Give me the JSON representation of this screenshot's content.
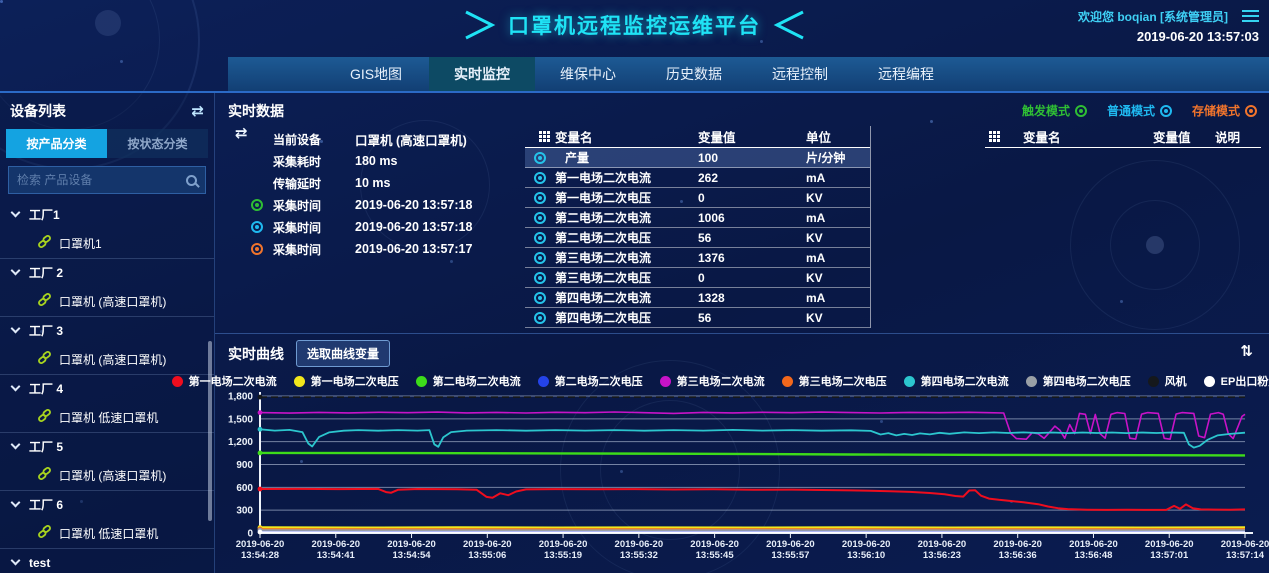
{
  "header": {
    "title": "口罩机远程监控运维平台",
    "welcome": "欢迎您  boqian [系统管理员]",
    "datetime": "2019-06-20 13:57:03"
  },
  "nav": {
    "tabs": [
      {
        "label": "GIS地图",
        "active": false
      },
      {
        "label": "实时监控",
        "active": true
      },
      {
        "label": "维保中心",
        "active": false
      },
      {
        "label": "历史数据",
        "active": false
      },
      {
        "label": "远程控制",
        "active": false
      },
      {
        "label": "远程编程",
        "active": false
      }
    ]
  },
  "sidebar": {
    "title": "设备列表",
    "tabs": [
      {
        "label": "按产品分类",
        "active": true
      },
      {
        "label": "按状态分类",
        "active": false
      }
    ],
    "search_placeholder": "检索 产品设备",
    "tree": [
      {
        "factory": "工厂1",
        "devices": [
          "口罩机1"
        ]
      },
      {
        "factory": "工厂 2",
        "devices": [
          "口罩机 (高速口罩机)"
        ]
      },
      {
        "factory": "工厂 3",
        "devices": [
          "口罩机 (高速口罩机)"
        ]
      },
      {
        "factory": "工厂 4",
        "devices": [
          "口罩机 低速口罩机"
        ]
      },
      {
        "factory": "工厂 5",
        "devices": [
          "口罩机 (高速口罩机)"
        ]
      },
      {
        "factory": "工厂 6",
        "devices": [
          "口罩机 低速口罩机"
        ]
      },
      {
        "factory": "test",
        "devices": []
      }
    ]
  },
  "realtime_data": {
    "title": "实时数据",
    "modes": [
      {
        "label": "触发模式",
        "color": "#2fbe34"
      },
      {
        "label": "普通模式",
        "color": "#1fb9f0"
      },
      {
        "label": "存储模式",
        "color": "#f1742c"
      }
    ],
    "info_rows": [
      {
        "label": "当前设备",
        "value": "口罩机 (高速口罩机)",
        "icon": ""
      },
      {
        "label": "采集耗时",
        "value": "180 ms",
        "icon": ""
      },
      {
        "label": "传输延时",
        "value": "10 ms",
        "icon": ""
      },
      {
        "label": "采集时间",
        "value": "2019-06-20 13:57:18",
        "icon": "#2fbe34"
      },
      {
        "label": "采集时间",
        "value": "2019-06-20 13:57:18",
        "icon": "#1fb9f0"
      },
      {
        "label": "采集时间",
        "value": "2019-06-20 13:57:17",
        "icon": "#f1742c"
      }
    ],
    "table": {
      "headers": [
        "变量名",
        "变量值",
        "单位"
      ],
      "row_icon_color": "#25c3ea",
      "rows": [
        {
          "name": "产量",
          "value": "100",
          "unit": "片/分钟",
          "highlight": true
        },
        {
          "name": "第一电场二次电流",
          "value": "262",
          "unit": "mA",
          "highlight": false
        },
        {
          "name": "第一电场二次电压",
          "value": "0",
          "unit": "KV",
          "highlight": false
        },
        {
          "name": "第二电场二次电流",
          "value": "1006",
          "unit": "mA",
          "highlight": false
        },
        {
          "name": "第二电场二次电压",
          "value": "56",
          "unit": "KV",
          "highlight": false
        },
        {
          "name": "第三电场二次电流",
          "value": "1376",
          "unit": "mA",
          "highlight": false
        },
        {
          "name": "第三电场二次电压",
          "value": "0",
          "unit": "KV",
          "highlight": false
        },
        {
          "name": "第四电场二次电流",
          "value": "1328",
          "unit": "mA",
          "highlight": false
        },
        {
          "name": "第四电场二次电压",
          "value": "56",
          "unit": "KV",
          "highlight": false
        }
      ]
    },
    "table2": {
      "headers": [
        "变量名",
        "变量值",
        "说明"
      ],
      "rows": []
    }
  },
  "realtime_curve": {
    "title": "实时曲线",
    "button": "选取曲线变量"
  },
  "chart_data": {
    "type": "line",
    "title": "实时曲线",
    "ylim": [
      0,
      1800
    ],
    "ytick_values": [
      0,
      300,
      600,
      900,
      1200,
      1500,
      1800
    ],
    "ytick_labels": [
      "0",
      "300",
      "600",
      "900",
      "1,200",
      "1,500",
      "1,800"
    ],
    "x_date": "2019-06-20",
    "x_times": [
      "13:54:28",
      "13:54:41",
      "13:54:54",
      "13:55:06",
      "13:55:19",
      "13:55:32",
      "13:55:45",
      "13:55:57",
      "13:56:10",
      "13:56:23",
      "13:56:36",
      "13:56:48",
      "13:57:01",
      "13:57:14"
    ],
    "grid": true,
    "legend_position": "top",
    "series": [
      {
        "name": "第一电场二次电流",
        "color": "#ef0d1e",
        "width": 2,
        "points": [
          [
            0,
            578
          ],
          [
            4,
            580
          ],
          [
            8,
            577
          ],
          [
            12,
            579
          ],
          [
            12.8,
            538
          ],
          [
            13.3,
            528
          ],
          [
            14,
            568
          ],
          [
            16,
            578
          ],
          [
            20,
            576
          ],
          [
            22,
            568
          ],
          [
            23,
            474
          ],
          [
            23.6,
            462
          ],
          [
            24.4,
            522
          ],
          [
            25.2,
            497
          ],
          [
            26,
            545
          ],
          [
            27,
            573
          ],
          [
            30,
            577
          ],
          [
            34,
            575
          ],
          [
            38,
            577
          ],
          [
            42,
            572
          ],
          [
            46,
            574
          ],
          [
            50,
            568
          ],
          [
            54,
            570
          ],
          [
            58,
            563
          ],
          [
            60,
            560
          ],
          [
            62,
            556
          ],
          [
            64,
            548
          ],
          [
            66,
            540
          ],
          [
            68,
            526
          ],
          [
            69.5,
            508
          ],
          [
            70.6,
            486
          ],
          [
            71.4,
            478
          ],
          [
            72,
            558
          ],
          [
            72.6,
            562
          ],
          [
            73.2,
            490
          ],
          [
            74,
            452
          ],
          [
            75,
            436
          ],
          [
            76,
            424
          ],
          [
            77.5,
            404
          ],
          [
            79,
            378
          ],
          [
            80,
            348
          ],
          [
            81,
            326
          ],
          [
            82,
            314
          ],
          [
            84,
            306
          ],
          [
            86,
            303
          ],
          [
            88,
            305
          ],
          [
            90,
            303
          ],
          [
            92,
            304
          ],
          [
            92.8,
            356
          ],
          [
            93.4,
            318
          ],
          [
            94,
            376
          ],
          [
            94.7,
            326
          ],
          [
            95.5,
            310
          ],
          [
            97,
            308
          ],
          [
            98.5,
            306
          ],
          [
            100,
            310
          ]
        ]
      },
      {
        "name": "第一电场二次电压",
        "color": "#f2e71c",
        "width": 2.4,
        "points": [
          [
            0,
            72
          ],
          [
            10,
            70
          ],
          [
            20,
            72
          ],
          [
            30,
            70
          ],
          [
            40,
            71
          ],
          [
            50,
            70
          ],
          [
            60,
            72
          ],
          [
            70,
            70
          ],
          [
            80,
            71
          ],
          [
            90,
            70
          ],
          [
            100,
            72
          ]
        ]
      },
      {
        "name": "第二电场二次电流",
        "color": "#3ddc1a",
        "width": 2.4,
        "points": [
          [
            0,
            1052
          ],
          [
            15,
            1050
          ],
          [
            30,
            1046
          ],
          [
            45,
            1040
          ],
          [
            60,
            1032
          ],
          [
            75,
            1026
          ],
          [
            90,
            1022
          ],
          [
            100,
            1020
          ]
        ]
      },
      {
        "name": "第二电场二次电压",
        "color": "#2443e8",
        "width": 1.6,
        "points": [
          [
            0,
            28
          ],
          [
            25,
            27
          ],
          [
            50,
            28
          ],
          [
            75,
            27
          ],
          [
            100,
            28
          ]
        ]
      },
      {
        "name": "第三电场二次电流",
        "color": "#c813c8",
        "width": 1.6,
        "points": [
          [
            0,
            1582
          ],
          [
            3,
            1575
          ],
          [
            6,
            1585
          ],
          [
            9,
            1578
          ],
          [
            12,
            1586
          ],
          [
            15,
            1580
          ],
          [
            18,
            1588
          ],
          [
            21,
            1578
          ],
          [
            24,
            1584
          ],
          [
            27,
            1576
          ],
          [
            30,
            1586
          ],
          [
            33,
            1580
          ],
          [
            36,
            1590
          ],
          [
            39,
            1580
          ],
          [
            42,
            1572
          ],
          [
            45,
            1584
          ],
          [
            48,
            1578
          ],
          [
            51,
            1586
          ],
          [
            54,
            1580
          ],
          [
            57,
            1588
          ],
          [
            60,
            1582
          ],
          [
            63,
            1576
          ],
          [
            66,
            1584
          ],
          [
            69,
            1580
          ],
          [
            72,
            1586
          ],
          [
            74,
            1580
          ],
          [
            75.5,
            1576
          ],
          [
            76.2,
            1310
          ],
          [
            76.8,
            1240
          ],
          [
            77.8,
            1232
          ],
          [
            78.4,
            1318
          ],
          [
            79,
            1302
          ],
          [
            79.6,
            1244
          ],
          [
            80.2,
            1330
          ],
          [
            80.7,
            1404
          ],
          [
            81.2,
            1352
          ],
          [
            81.7,
            1246
          ],
          [
            82.2,
            1424
          ],
          [
            82.7,
            1306
          ],
          [
            83.2,
            1572
          ],
          [
            83.8,
            1560
          ],
          [
            84.3,
            1306
          ],
          [
            84.8,
            1558
          ],
          [
            85.3,
            1304
          ],
          [
            85.8,
            1246
          ],
          [
            86.4,
            1560
          ],
          [
            87,
            1582
          ],
          [
            87.8,
            1570
          ],
          [
            88.3,
            1246
          ],
          [
            88.9,
            1234
          ],
          [
            89.5,
            1562
          ],
          [
            90.1,
            1582
          ],
          [
            91.2,
            1572
          ],
          [
            91.8,
            1244
          ],
          [
            92.4,
            1232
          ],
          [
            93,
            1564
          ],
          [
            93.6,
            1582
          ],
          [
            94.8,
            1572
          ],
          [
            95.3,
            1274
          ],
          [
            95.9,
            1252
          ],
          [
            96.5,
            1562
          ],
          [
            97.3,
            1582
          ],
          [
            97.8,
            1560
          ],
          [
            98.3,
            1304
          ],
          [
            98.8,
            1242
          ],
          [
            99.3,
            1402
          ],
          [
            99.7,
            1532
          ],
          [
            100,
            1560
          ]
        ]
      },
      {
        "name": "第三电场二次电压",
        "color": "#f2681c",
        "width": 1.6,
        "points": [
          [
            0,
            52
          ],
          [
            25,
            51
          ],
          [
            50,
            52
          ],
          [
            75,
            51
          ],
          [
            100,
            52
          ]
        ]
      },
      {
        "name": "第四电场二次电流",
        "color": "#2cc6ce",
        "width": 1.8,
        "points": [
          [
            0,
            1362
          ],
          [
            1.5,
            1346
          ],
          [
            3,
            1354
          ],
          [
            4.3,
            1326
          ],
          [
            4.9,
            1176
          ],
          [
            5.3,
            1136
          ],
          [
            6,
            1262
          ],
          [
            7,
            1322
          ],
          [
            8.5,
            1344
          ],
          [
            10,
            1352
          ],
          [
            12,
            1344
          ],
          [
            14,
            1352
          ],
          [
            16,
            1346
          ],
          [
            17.2,
            1352
          ],
          [
            17.7,
            1166
          ],
          [
            18.1,
            1132
          ],
          [
            18.6,
            1256
          ],
          [
            19.4,
            1326
          ],
          [
            21,
            1346
          ],
          [
            24,
            1352
          ],
          [
            27,
            1344
          ],
          [
            30,
            1352
          ],
          [
            33,
            1346
          ],
          [
            36,
            1352
          ],
          [
            39,
            1344
          ],
          [
            42,
            1352
          ],
          [
            45,
            1346
          ],
          [
            48,
            1354
          ],
          [
            51,
            1346
          ],
          [
            54,
            1352
          ],
          [
            57,
            1344
          ],
          [
            60,
            1350
          ],
          [
            62,
            1342
          ],
          [
            63,
            1294
          ],
          [
            63.8,
            1312
          ],
          [
            64.6,
            1282
          ],
          [
            65.4,
            1302
          ],
          [
            66.2,
            1288
          ],
          [
            67,
            1308
          ],
          [
            68,
            1296
          ],
          [
            69,
            1316
          ],
          [
            70,
            1304
          ],
          [
            71.5,
            1322
          ],
          [
            73,
            1312
          ],
          [
            74.5,
            1322
          ],
          [
            76,
            1314
          ],
          [
            77.5,
            1322
          ],
          [
            79,
            1314
          ],
          [
            80.5,
            1320
          ],
          [
            82,
            1312
          ],
          [
            83.5,
            1320
          ],
          [
            85,
            1314
          ],
          [
            86.5,
            1320
          ],
          [
            88,
            1312
          ],
          [
            89.5,
            1320
          ],
          [
            91,
            1314
          ],
          [
            92.5,
            1320
          ],
          [
            93.8,
            1316
          ],
          [
            94.3,
            1164
          ],
          [
            94.8,
            1122
          ],
          [
            95.4,
            1146
          ],
          [
            96.2,
            1224
          ],
          [
            97.2,
            1282
          ],
          [
            98.5,
            1302
          ],
          [
            100,
            1318
          ]
        ]
      },
      {
        "name": "第四电场二次电压",
        "color": "#9aa0a6",
        "width": 1.6,
        "points": [
          [
            0,
            38
          ],
          [
            25,
            37
          ],
          [
            50,
            38
          ],
          [
            75,
            37
          ],
          [
            100,
            38
          ]
        ]
      },
      {
        "name": "风机",
        "color": "#15181c",
        "width": 1.8,
        "dash": true,
        "points": [
          [
            0,
            1786
          ],
          [
            100,
            1786
          ]
        ]
      },
      {
        "name": "EP出口粉尘排放值",
        "color": "#ffffff",
        "width": 1.6,
        "points": [
          [
            0,
            12
          ],
          [
            50,
            11
          ],
          [
            100,
            12
          ]
        ]
      }
    ]
  }
}
